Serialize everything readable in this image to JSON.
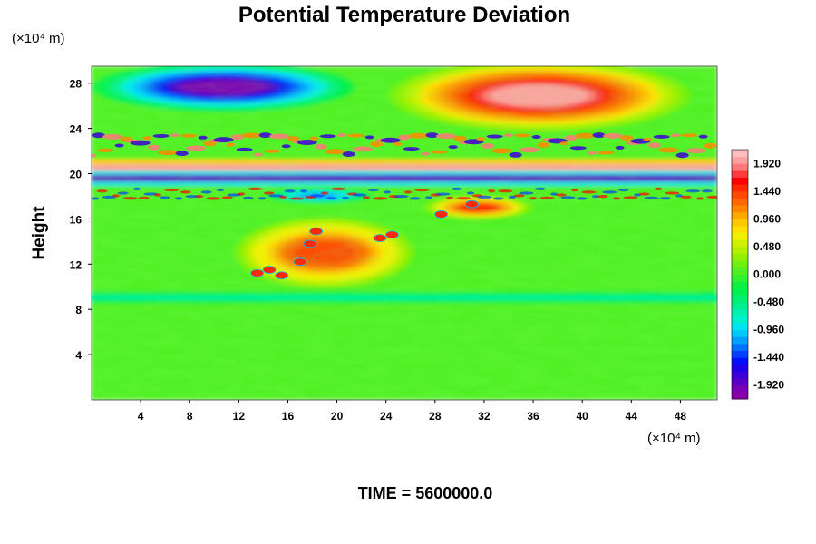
{
  "chart_data": {
    "type": "heatmap",
    "title": "Potential Temperature Deviation",
    "ylabel": "Height",
    "y_unit_label": "(×10⁴ m)",
    "x_unit_label": "(×10⁴ m)",
    "footer": "TIME = 5600000.0",
    "xlim": [
      0,
      51
    ],
    "ylim": [
      0,
      29.5
    ],
    "x_ticks": [
      4,
      8,
      12,
      16,
      20,
      24,
      28,
      32,
      36,
      40,
      44,
      48
    ],
    "x_tick_labels": [
      "4",
      "8",
      "12",
      "16",
      "20",
      "24",
      "28",
      "32",
      "36",
      "40",
      "44",
      "48"
    ],
    "y_ticks": [
      4,
      8,
      12,
      16,
      20,
      24,
      28
    ],
    "y_tick_labels": [
      "4",
      "8",
      "12",
      "16",
      "20",
      "24",
      "28"
    ],
    "colorbar": {
      "range": [
        -2.16,
        2.16
      ],
      "tick_values": [
        1.92,
        1.44,
        0.96,
        0.48,
        0.0,
        -0.48,
        -0.96,
        -1.44,
        -1.92
      ],
      "tick_labels": [
        "1.920",
        "1.440",
        "0.960",
        "0.480",
        "0.000",
        "-0.480",
        "-0.960",
        "-1.440",
        "-1.920"
      ],
      "levels": [
        -2.16,
        -2.04,
        -1.92,
        -1.8,
        -1.68,
        -1.56,
        -1.44,
        -1.32,
        -1.2,
        -1.08,
        -0.96,
        -0.84,
        -0.72,
        -0.6,
        -0.48,
        -0.36,
        -0.24,
        -0.12,
        0.0,
        0.12,
        0.24,
        0.36,
        0.48,
        0.6,
        0.72,
        0.84,
        0.96,
        1.08,
        1.2,
        1.32,
        1.44,
        1.56,
        1.68,
        1.8,
        1.92,
        2.04,
        2.16
      ],
      "colors": [
        "#8a00a8",
        "#7a00b4",
        "#5a00c8",
        "#3c00d8",
        "#1e00e8",
        "#0010f8",
        "#0040ff",
        "#0070ff",
        "#00a0ff",
        "#00c8ff",
        "#00e4f0",
        "#00f0d0",
        "#00f0b0",
        "#00f090",
        "#00f070",
        "#00f050",
        "#10f040",
        "#30f030",
        "#50f020",
        "#70f010",
        "#90f000",
        "#b0f000",
        "#d0f000",
        "#f0f000",
        "#ffe000",
        "#ffc800",
        "#ffa800",
        "#ff8800",
        "#ff6800",
        "#ff4800",
        "#ff2800",
        "#ff0000",
        "#ff3c3c",
        "#ff7878",
        "#ffa0a0",
        "#ffbebe"
      ]
    },
    "features": [
      {
        "name": "upper cold anomaly",
        "x": [
          2.5,
          19
        ],
        "y": [
          26,
          29.3
        ],
        "value": -2.1
      },
      {
        "name": "upper warm anomaly",
        "x": [
          27,
          46
        ],
        "y": [
          24.5,
          29.3
        ],
        "value": 2.1
      },
      {
        "name": "tropopause warm band",
        "x": [
          0,
          51
        ],
        "y": [
          20.0,
          20.8
        ],
        "value": 2.0
      },
      {
        "name": "tropopause cold band",
        "x": [
          0,
          51
        ],
        "y": [
          19.3,
          19.9
        ],
        "value": -1.9
      },
      {
        "name": "mid-level warm patch",
        "x": [
          28,
          35
        ],
        "y": [
          16.2,
          17.8
        ],
        "value": 1.6
      },
      {
        "name": "mid-level cold patch",
        "x": [
          15,
          22
        ],
        "y": [
          17.5,
          18.6
        ],
        "value": -1.2
      },
      {
        "name": "plume warm streaks",
        "x": [
          13,
          25
        ],
        "y": [
          10.5,
          15.5
        ],
        "value": 1.5
      },
      {
        "name": "low-level cool line",
        "x": [
          0,
          51
        ],
        "y": [
          8.8,
          9.3
        ],
        "value": -0.5
      }
    ]
  }
}
